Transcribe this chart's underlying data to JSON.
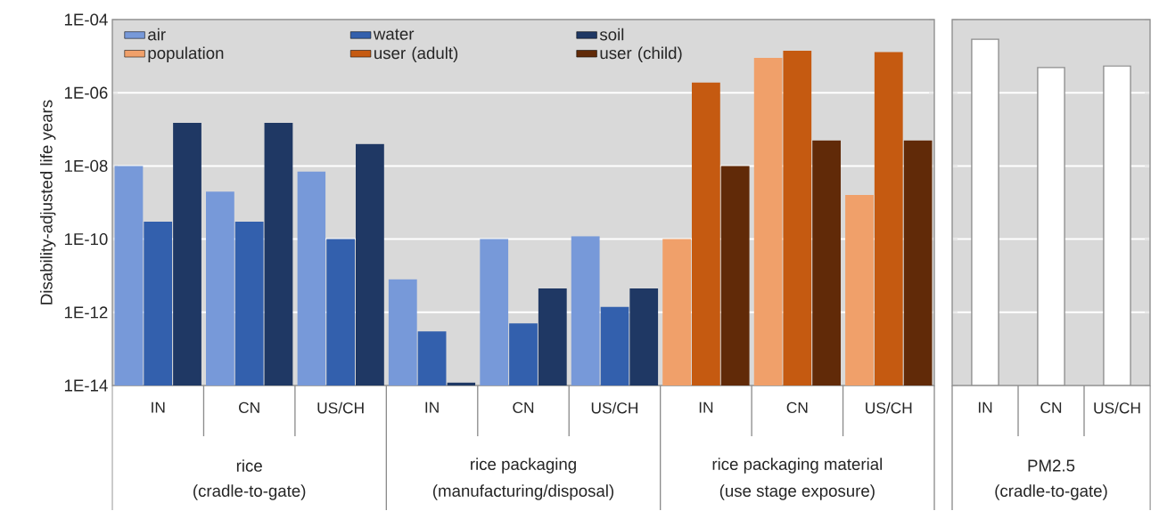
{
  "chart_data": [
    {
      "type": "bar",
      "ylabel": "Disability-adjusted life years",
      "log": "y",
      "grid": "y",
      "legend": "top left",
      "categories": [
        "IN",
        "CN",
        "US/CH",
        "IN",
        "CN",
        "US/CH",
        "IN",
        "CN",
        "US/CH"
      ],
      "ylim": [
        1e-14,
        0.0001
      ],
      "yticks": [
        {
          "value": 1e-14,
          "label": "1E-14"
        },
        {
          "value": 1e-12,
          "label": "1E-12"
        },
        {
          "value": 1e-10,
          "label": "1E-10"
        },
        {
          "value": 1e-08,
          "label": "1E-08"
        },
        {
          "value": 1e-06,
          "label": "1E-06"
        },
        {
          "value": 0.0001,
          "label": "1E-04"
        }
      ],
      "series": [
        {
          "name": "air",
          "color": "#7799d9",
          "values": [
            1e-08,
            2e-09,
            7e-09,
            8e-12,
            1e-10,
            1.2e-10,
            null,
            null,
            null
          ]
        },
        {
          "name": "water",
          "color": "#3360ad",
          "values": [
            3e-10,
            3e-10,
            1e-10,
            3e-13,
            5e-13,
            1.4e-12,
            null,
            null,
            null
          ]
        },
        {
          "name": "soil",
          "color": "#1f3864",
          "values": [
            1.5e-07,
            1.5e-07,
            4e-08,
            1.2e-14,
            4.5e-12,
            4.5e-12,
            null,
            null,
            null
          ]
        },
        {
          "name": "population",
          "color": "#f0a06a",
          "values": [
            null,
            null,
            null,
            null,
            null,
            null,
            1e-10,
            9e-06,
            1.6e-09
          ]
        },
        {
          "name": "user (adult)",
          "color": "#c55a11",
          "values": [
            null,
            null,
            null,
            null,
            null,
            null,
            1.9e-06,
            1.4e-05,
            1.3e-05
          ]
        },
        {
          "name": "user (child)",
          "color": "#612a08",
          "values": [
            null,
            null,
            null,
            null,
            null,
            null,
            1e-08,
            5e-08,
            5e-08
          ]
        }
      ],
      "annotations": [
        "rice",
        "(cradle-to-gate)",
        "rice packaging",
        "(manufacturing/disposal)",
        "rice packaging material",
        "(use stage exposure)"
      ]
    },
    {
      "type": "bar",
      "log": "y",
      "grid": "y",
      "tick_labels": "x",
      "categories": [
        "IN",
        "CN",
        "US/CH"
      ],
      "ylim": [
        1e-14,
        0.0001
      ],
      "yticks": [
        {
          "value": 1e-14,
          "label": null
        },
        {
          "value": 1e-12,
          "label": null
        },
        {
          "value": 1e-10,
          "label": null
        },
        {
          "value": 1e-08,
          "label": null
        },
        {
          "value": 1e-06,
          "label": null
        },
        {
          "value": 0.0001,
          "label": null
        }
      ],
      "series": [
        {
          "color": "#ffffff",
          "values": [
            2.9e-05,
            4.9e-06,
            5.4e-06
          ]
        }
      ],
      "annotations": [
        "PM2.5",
        "(cradle-to-gate)"
      ]
    }
  ]
}
